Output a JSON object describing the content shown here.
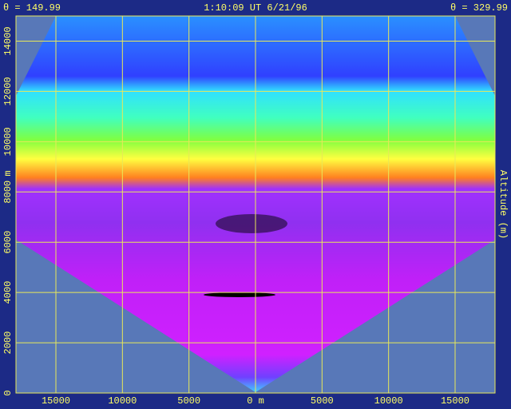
{
  "chart_data": {
    "type": "image",
    "header_left": "θ = 149.99",
    "header_center": "1:10:09 UT  6/21/96",
    "header_right": "θ = 329.99",
    "y_label": "Altitude (m)",
    "y_unit": "m",
    "xlim": [
      -18000,
      18000
    ],
    "xticks": [
      {
        "value": -15000,
        "label": "15000"
      },
      {
        "value": -10000,
        "label": "10000"
      },
      {
        "value": -5000,
        "label": "5000"
      },
      {
        "value": 0,
        "label": "0 m"
      },
      {
        "value": 5000,
        "label": "5000"
      },
      {
        "value": 10000,
        "label": "10000"
      },
      {
        "value": 15000,
        "label": "15000"
      }
    ],
    "ylim": [
      0,
      15000
    ],
    "yticks": [
      0,
      2000,
      4000,
      6000,
      8000,
      10000,
      12000,
      14000
    ],
    "grid": true,
    "grid_color": "#e8e858"
  }
}
